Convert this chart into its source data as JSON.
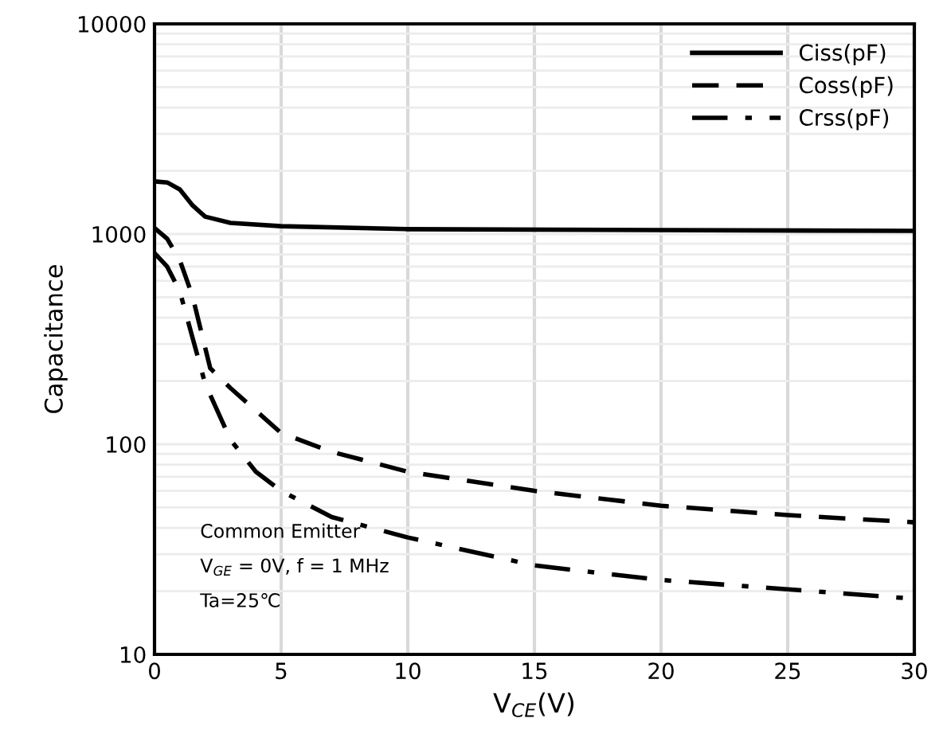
{
  "chart_data": {
    "type": "line",
    "xlabel": "V$_{CE}$(V)",
    "ylabel": "Capacitance",
    "log": "y",
    "grid": true,
    "legend": "top right",
    "xlim": [
      0,
      30
    ],
    "xticks": [
      0,
      5,
      10,
      15,
      20,
      25,
      30
    ],
    "ylim": [
      10,
      10000
    ],
    "yticks": [
      10,
      100,
      1000,
      10000
    ],
    "annotations": [
      "Common Emitter",
      "V$_{GE}$ = 0V, f = 1 MHz",
      "Ta=25℃"
    ],
    "series": [
      {
        "name": "Ciss(pF)",
        "color": "#000000",
        "line_style": "solid",
        "x": [
          0,
          0.5,
          1,
          1.5,
          2,
          3,
          5,
          10,
          20,
          30
        ],
        "values": [
          1780,
          1760,
          1630,
          1370,
          1210,
          1130,
          1090,
          1055,
          1045,
          1035
        ]
      },
      {
        "name": "Coss(pF)",
        "color": "#000000",
        "line_style": "dashed",
        "x": [
          0,
          0.5,
          1,
          1.5,
          2.2,
          3,
          5,
          7,
          10,
          15,
          20,
          25,
          30
        ],
        "values": [
          1070,
          950,
          750,
          506,
          230,
          185,
          113,
          92,
          74,
          60,
          51,
          46,
          42.5
        ]
      },
      {
        "name": "Crss(pF)",
        "color": "#000000",
        "line_style": "dashdot",
        "x": [
          0,
          0.5,
          1,
          2,
          3,
          4,
          5,
          7,
          10,
          15,
          20,
          25,
          30
        ],
        "values": [
          811,
          700,
          533,
          194,
          105,
          74,
          60,
          45,
          36,
          26.5,
          22.6,
          20.4,
          18.4
        ]
      }
    ]
  }
}
